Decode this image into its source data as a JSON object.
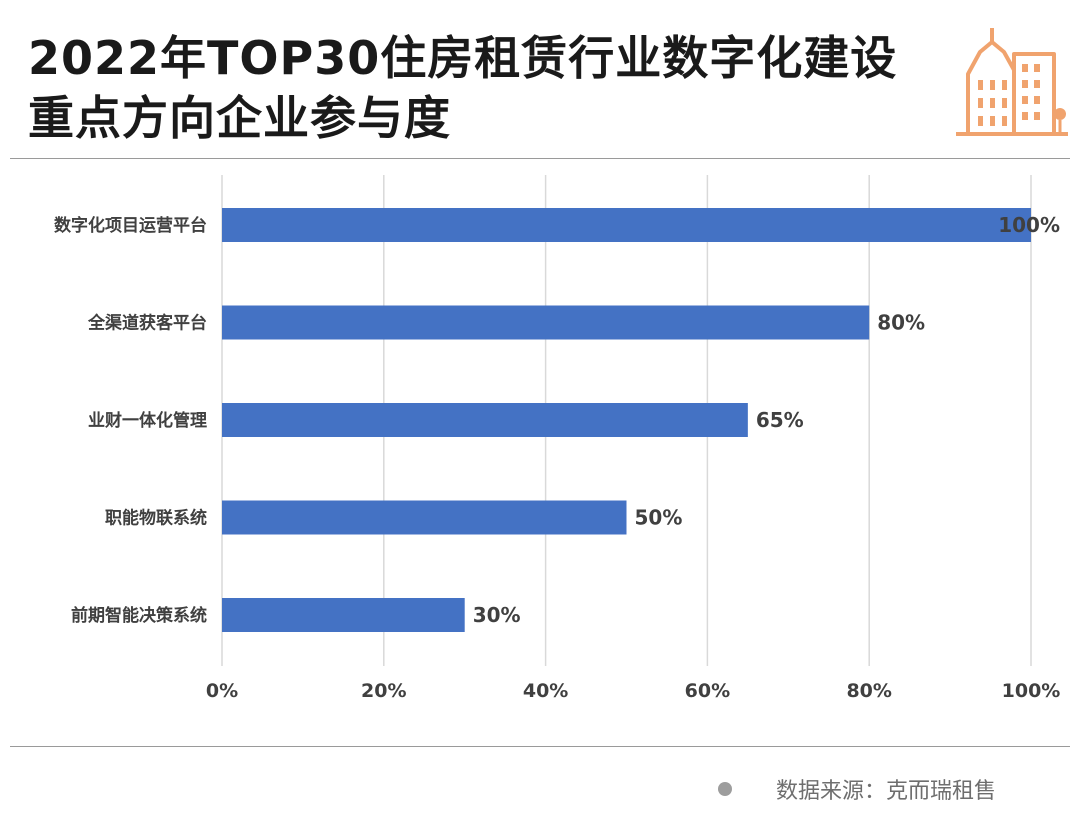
{
  "title": "2022年TOP30住房租赁行业数字化建设重点方向企业参与度",
  "source": "数据来源：克而瑞租售",
  "icon": "building-icon",
  "colors": {
    "bar": "#4472C4",
    "grid": "#d9d9d9",
    "icon": "#F0A36E",
    "text": "#404040"
  },
  "chart_data": {
    "type": "bar",
    "orientation": "horizontal",
    "categories": [
      "数字化项目运营平台",
      "全渠道获客平台",
      "业财一体化管理",
      "职能物联系统",
      "前期智能决策系统"
    ],
    "values": [
      100,
      80,
      65,
      50,
      30
    ],
    "value_labels": [
      "100%",
      "80%",
      "65%",
      "50%",
      "30%"
    ],
    "xlim": [
      0,
      100
    ],
    "xticks": [
      0,
      20,
      40,
      60,
      80,
      100
    ],
    "xtick_labels": [
      "0%",
      "20%",
      "40%",
      "60%",
      "80%",
      "100%"
    ],
    "grid": true,
    "legend": false
  }
}
